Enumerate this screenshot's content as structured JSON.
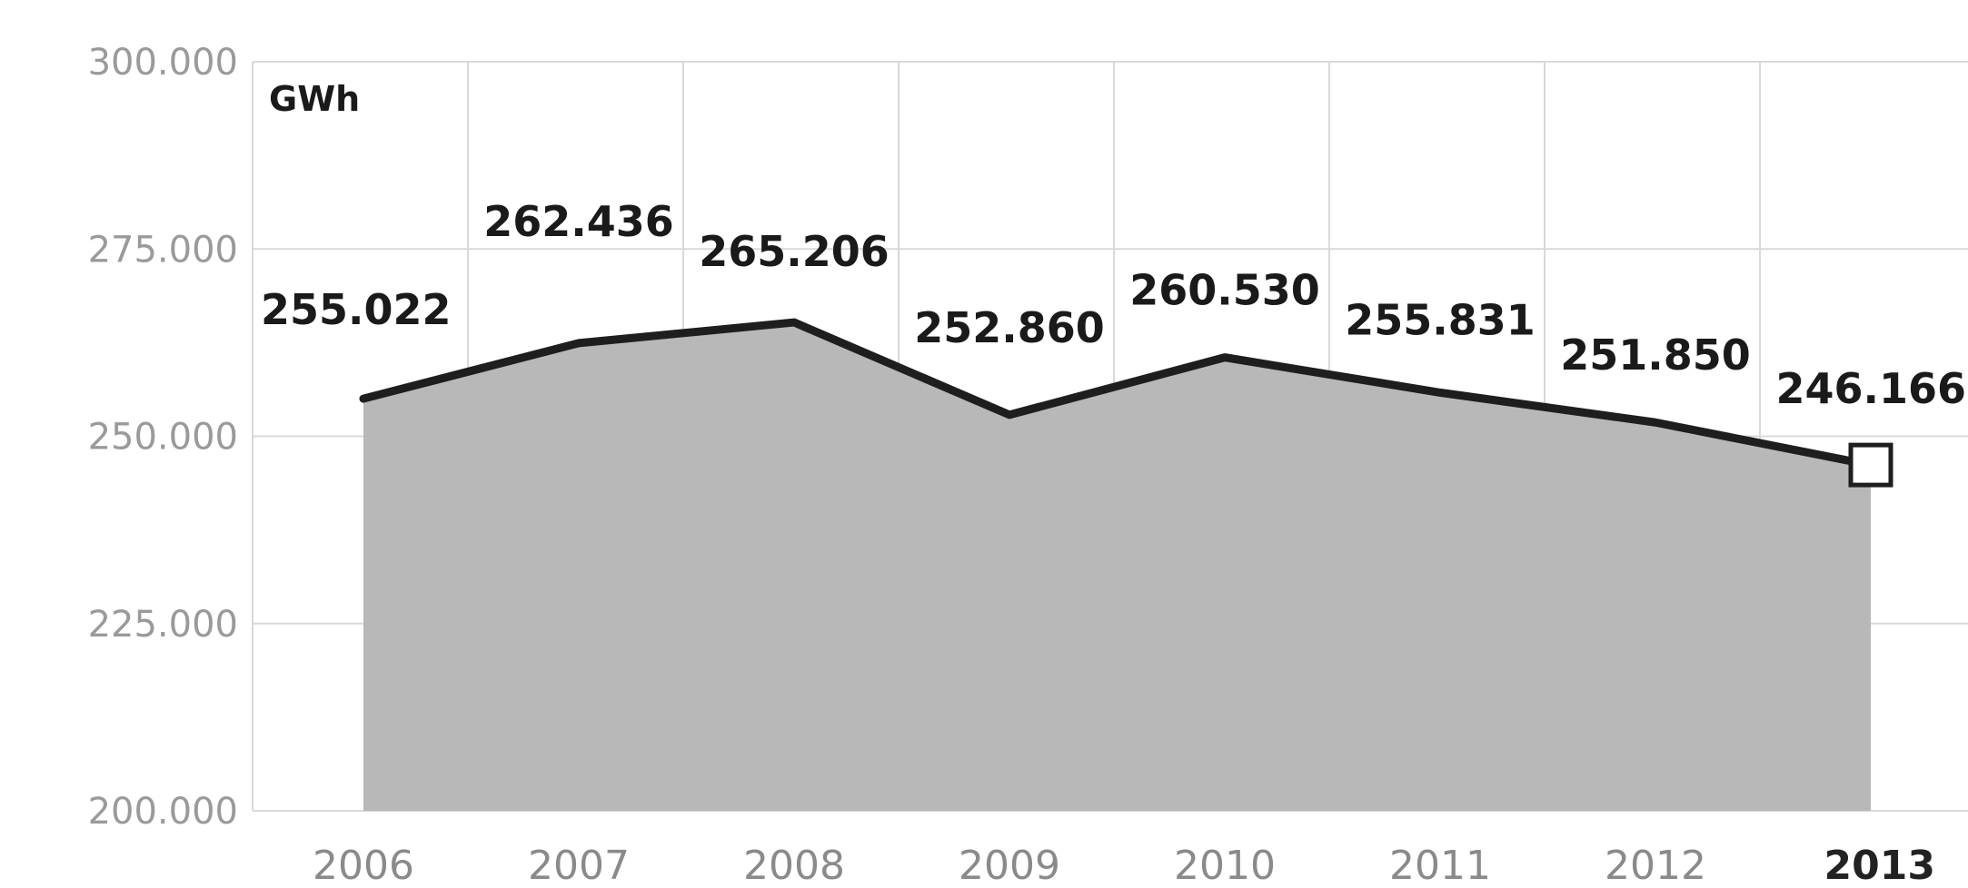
{
  "chart_data": {
    "type": "area",
    "unit_label": "GWh",
    "categories": [
      "2006",
      "2007",
      "2008",
      "2009",
      "2010",
      "2011",
      "2012",
      "2013"
    ],
    "highlight_category": "2013",
    "values": [
      255022,
      262436,
      265206,
      252860,
      260530,
      255831,
      251850,
      246166
    ],
    "data_labels": [
      "255.022",
      "262.436",
      "265.206",
      "252.860",
      "260.530",
      "255.831",
      "251.850",
      "246.166"
    ],
    "ylim": [
      200000,
      300000
    ],
    "yticks": [
      200000,
      225000,
      250000,
      275000,
      300000
    ],
    "ytick_labels": [
      "200.000",
      "225.000",
      "250.000",
      "275.000",
      "300.000"
    ],
    "grid": true,
    "colors": {
      "area_fill": "#b8b8b8",
      "line": "#1e1e1e",
      "grid": "#d9d9d9",
      "marker_fill": "#ffffff"
    }
  }
}
